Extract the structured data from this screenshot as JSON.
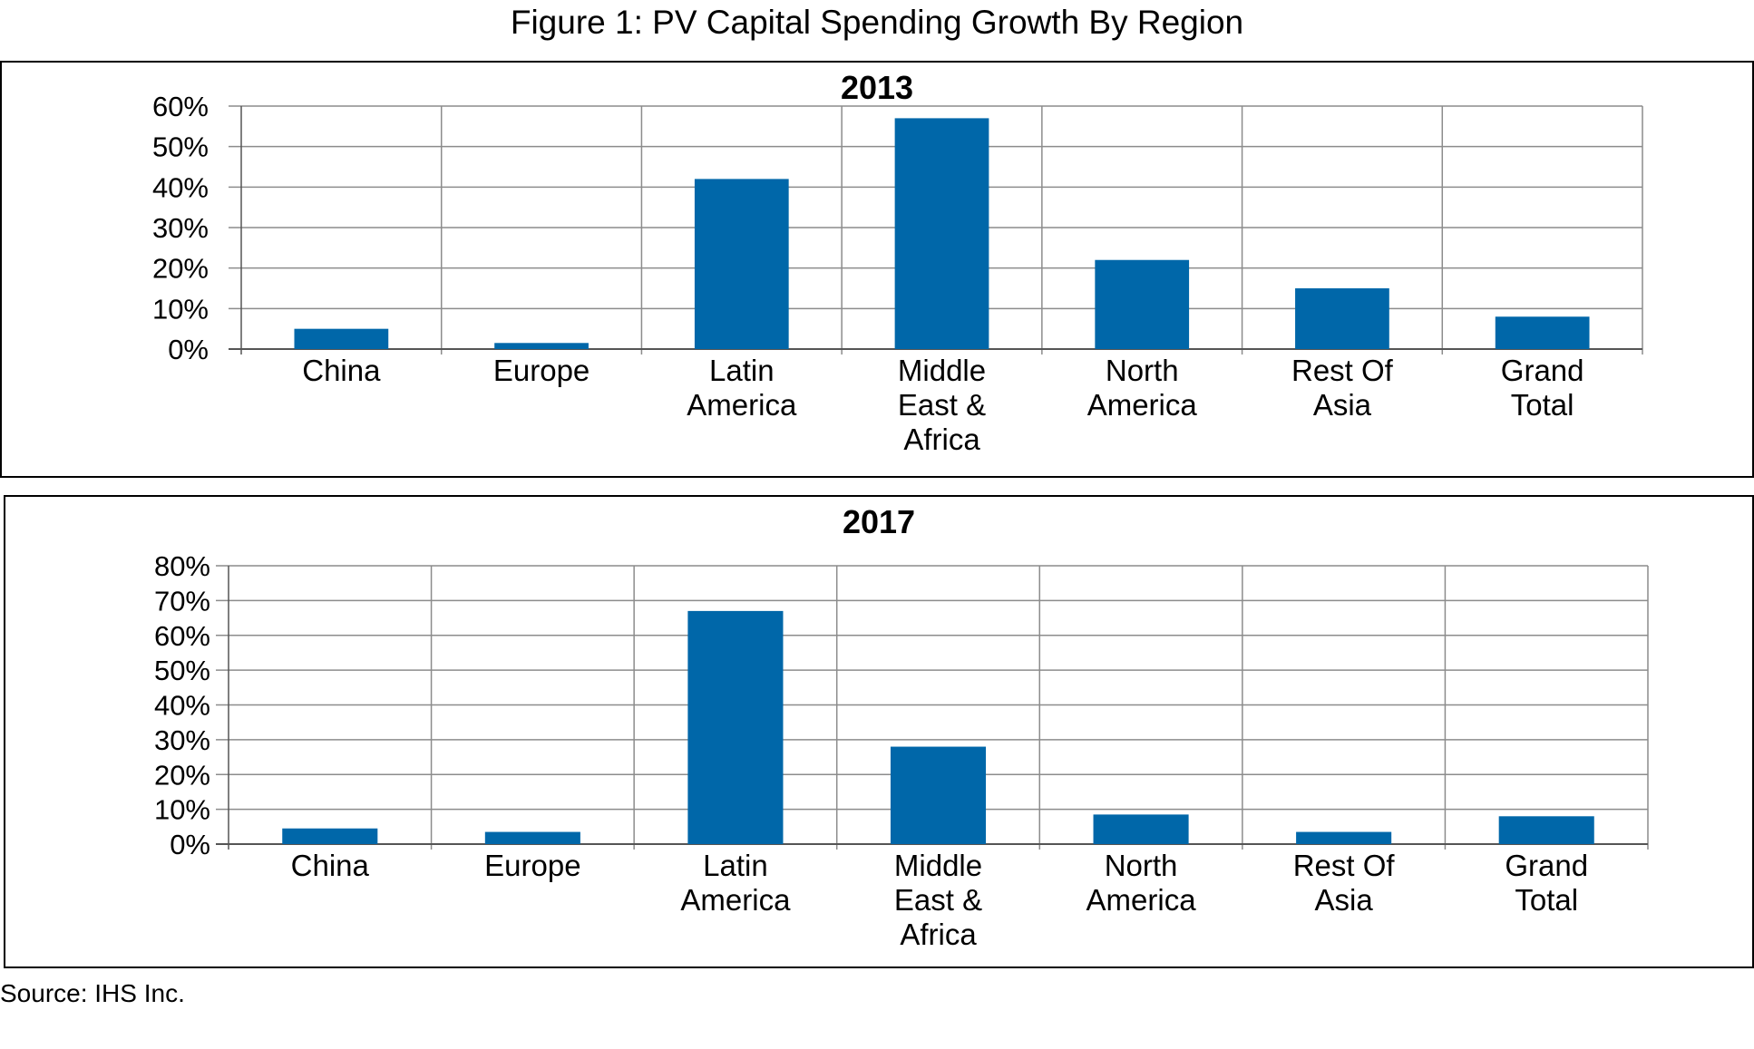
{
  "figure_title": "Figure 1: PV Capital Spending Growth By Region",
  "source": "Source: IHS Inc.",
  "colors": {
    "bar": "#0067a9",
    "grid": "#8c8c8c",
    "axis": "#555555"
  },
  "chart_data": [
    {
      "type": "bar",
      "title": "2013",
      "categories": [
        [
          "China"
        ],
        [
          "Europe"
        ],
        [
          "Latin",
          "America"
        ],
        [
          "Middle",
          "East &",
          "Africa"
        ],
        [
          "North",
          "America"
        ],
        [
          "Rest Of",
          "Asia"
        ],
        [
          "Grand",
          "Total"
        ]
      ],
      "values": [
        5,
        1.5,
        42,
        57,
        22,
        15,
        8
      ],
      "yticks": [
        "0%",
        "10%",
        "20%",
        "30%",
        "40%",
        "50%",
        "60%"
      ],
      "ylim": [
        0,
        60
      ],
      "xlabel": "",
      "ylabel": ""
    },
    {
      "type": "bar",
      "title": "2017",
      "categories": [
        [
          "China"
        ],
        [
          "Europe"
        ],
        [
          "Latin",
          "America"
        ],
        [
          "Middle",
          "East &",
          "Africa"
        ],
        [
          "North",
          "America"
        ],
        [
          "Rest Of",
          "Asia"
        ],
        [
          "Grand",
          "Total"
        ]
      ],
      "values": [
        4.5,
        3.5,
        67,
        28,
        8.5,
        3.5,
        8
      ],
      "yticks": [
        "0%",
        "10%",
        "20%",
        "30%",
        "40%",
        "50%",
        "60%",
        "70%",
        "80%"
      ],
      "ylim": [
        0,
        80
      ],
      "xlabel": "",
      "ylabel": ""
    }
  ]
}
